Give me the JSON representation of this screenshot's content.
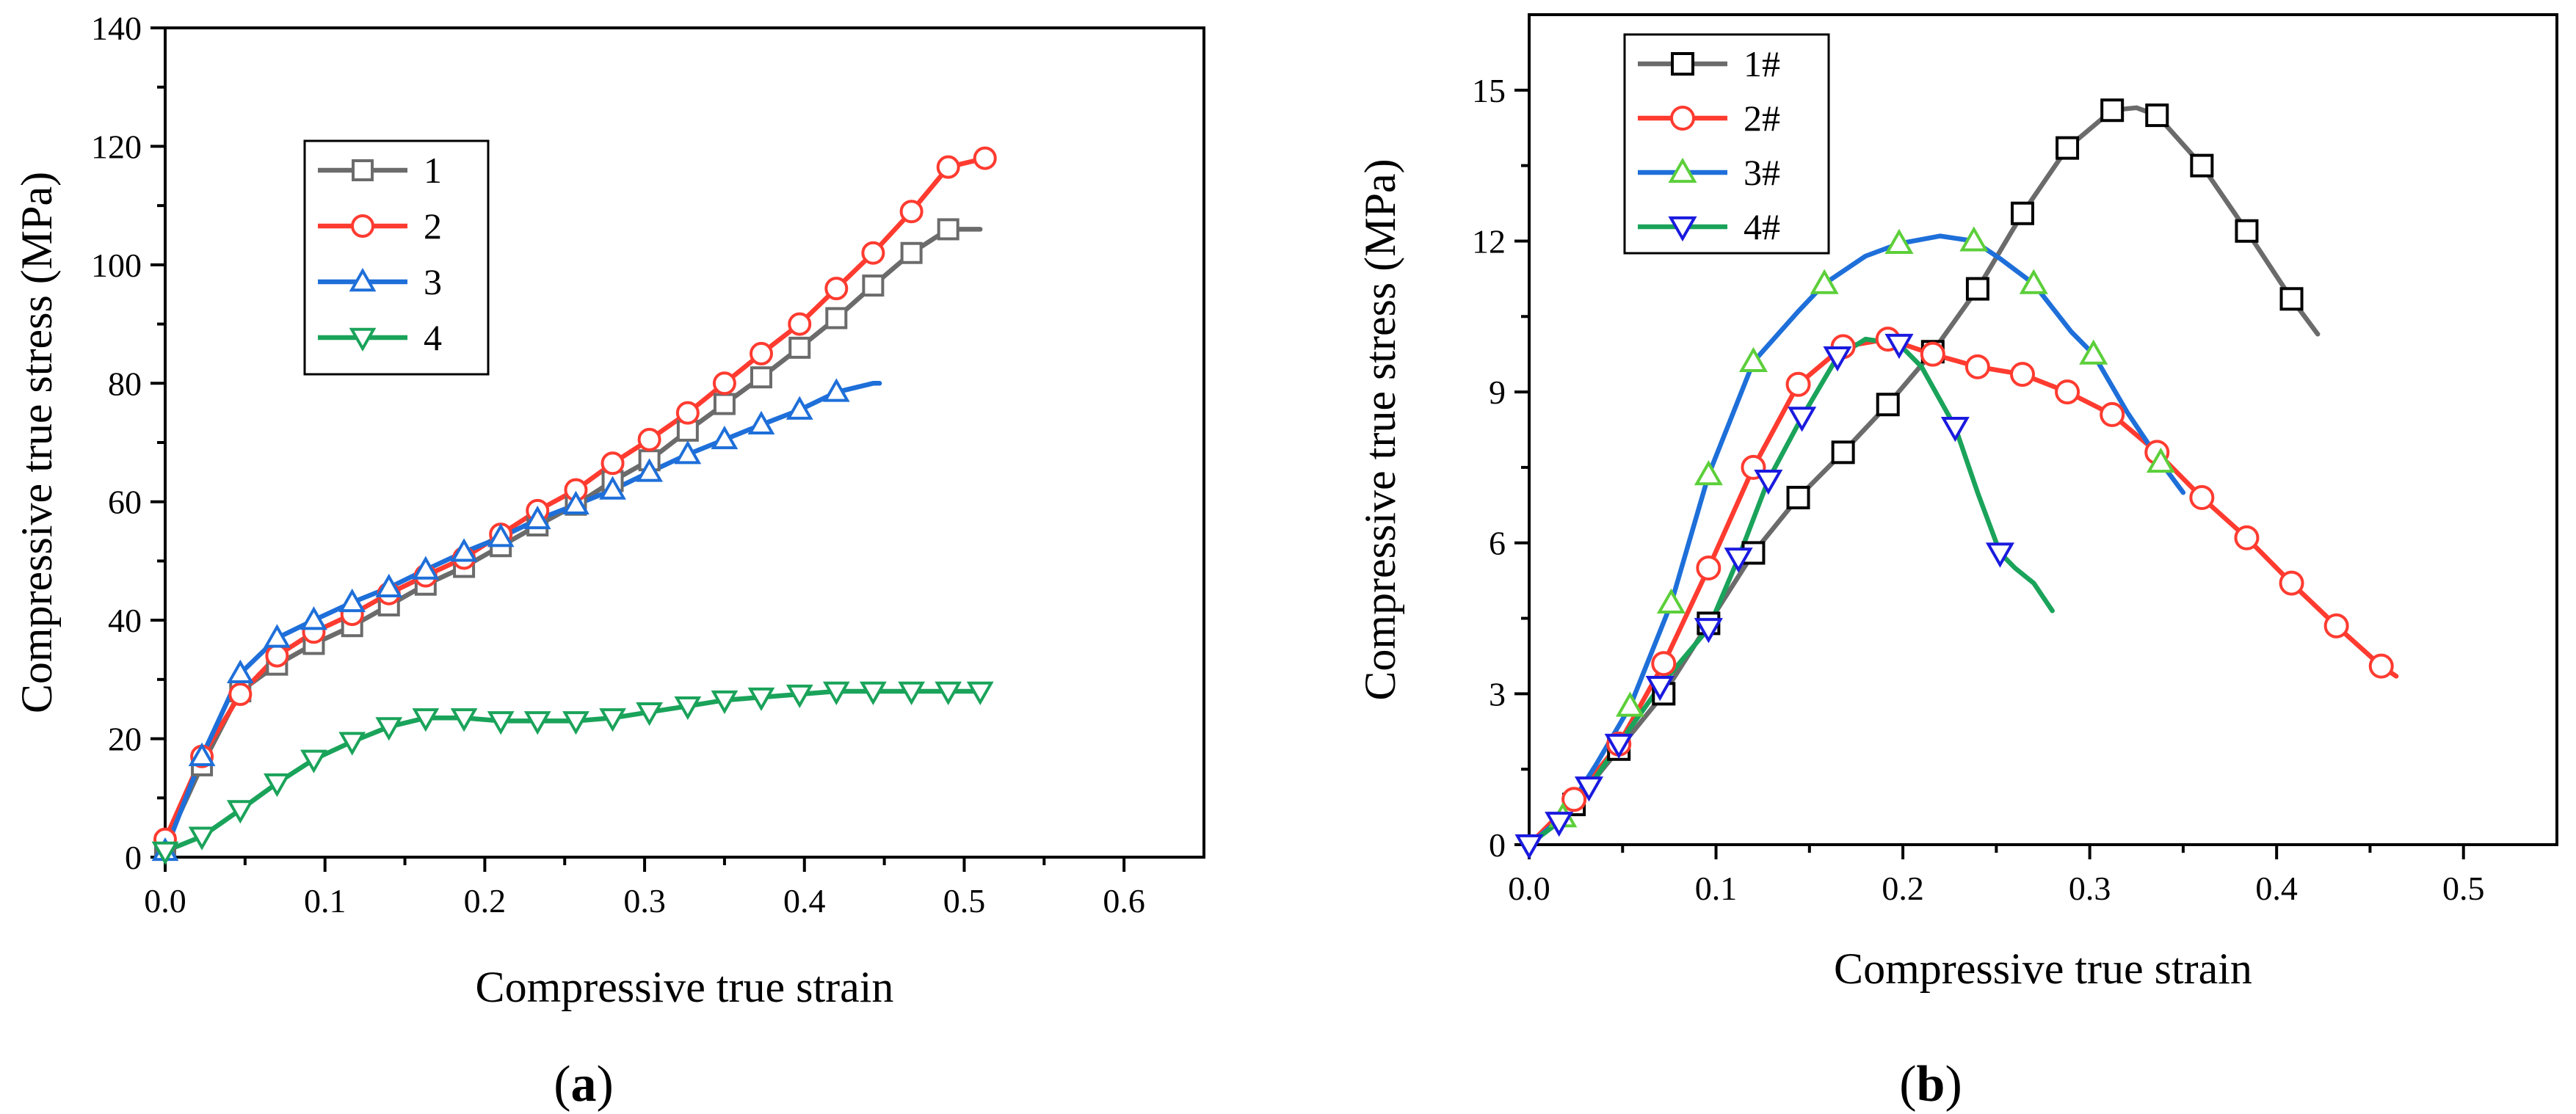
{
  "chart_data": [
    {
      "type": "line",
      "panel_label": "a",
      "xlabel": "Compressive true strain",
      "ylabel": "Compressive true stress (MPa)",
      "xlim": [
        0,
        0.65
      ],
      "ylim": [
        0,
        140
      ],
      "xticks": [
        0.0,
        0.1,
        0.2,
        0.3,
        0.4,
        0.5,
        0.6
      ],
      "yticks": [
        0,
        20,
        40,
        60,
        80,
        100,
        120,
        140
      ],
      "xtick_labels": [
        "0.0",
        "0.1",
        "0.2",
        "0.3",
        "0.4",
        "0.5",
        "0.6"
      ],
      "ytick_labels": [
        "0",
        "20",
        "40",
        "60",
        "80",
        "100",
        "120",
        "140"
      ],
      "legend_position": "upper-left",
      "grid": false,
      "series": [
        {
          "name": "1",
          "color": "#6b6b6b",
          "marker": "square",
          "x": [
            0,
            0.023,
            0.047,
            0.07,
            0.093,
            0.117,
            0.14,
            0.163,
            0.187,
            0.21,
            0.233,
            0.257,
            0.28,
            0.303,
            0.327,
            0.35,
            0.373,
            0.397,
            0.42,
            0.443,
            0.467,
            0.49,
            0.51
          ],
          "y": [
            2,
            15.5,
            28,
            32.5,
            36,
            39,
            42.5,
            46,
            49,
            52.5,
            56,
            59.5,
            63.5,
            67,
            72,
            76.5,
            81,
            86,
            91,
            96.5,
            102,
            106,
            106
          ],
          "marker_x": [
            0,
            0.023,
            0.047,
            0.07,
            0.093,
            0.117,
            0.14,
            0.163,
            0.187,
            0.21,
            0.233,
            0.257,
            0.28,
            0.303,
            0.327,
            0.35,
            0.373,
            0.397,
            0.42,
            0.443,
            0.467,
            0.49
          ]
        },
        {
          "name": "2",
          "color": "#ff3b30",
          "marker": "circle",
          "x": [
            0,
            0.023,
            0.047,
            0.07,
            0.093,
            0.117,
            0.14,
            0.163,
            0.187,
            0.21,
            0.233,
            0.257,
            0.28,
            0.303,
            0.327,
            0.35,
            0.373,
            0.397,
            0.42,
            0.443,
            0.467,
            0.49,
            0.513,
            0.517
          ],
          "y": [
            3,
            17,
            27.5,
            34,
            38,
            41,
            44.5,
            47.5,
            50.5,
            54.5,
            58.5,
            62,
            66.5,
            70.5,
            75,
            80,
            85,
            90,
            96,
            102,
            109,
            116.5,
            118,
            118.5
          ],
          "marker_x": [
            0,
            0.023,
            0.047,
            0.07,
            0.093,
            0.117,
            0.14,
            0.163,
            0.187,
            0.21,
            0.233,
            0.257,
            0.28,
            0.303,
            0.327,
            0.35,
            0.373,
            0.397,
            0.42,
            0.443,
            0.467,
            0.49,
            0.513
          ]
        },
        {
          "name": "3",
          "color": "#1e6fd9",
          "marker": "triangle-up",
          "x": [
            0,
            0.023,
            0.047,
            0.07,
            0.093,
            0.117,
            0.14,
            0.163,
            0.187,
            0.21,
            0.233,
            0.257,
            0.28,
            0.303,
            0.327,
            0.35,
            0.373,
            0.397,
            0.42,
            0.443,
            0.447
          ],
          "y": [
            1,
            17,
            31,
            37,
            40,
            43,
            45.5,
            48.5,
            51.5,
            54,
            57,
            59.5,
            62,
            65,
            68,
            70.5,
            73,
            75.5,
            78.5,
            80,
            80
          ],
          "marker_x": [
            0,
            0.023,
            0.047,
            0.07,
            0.093,
            0.117,
            0.14,
            0.163,
            0.187,
            0.21,
            0.233,
            0.257,
            0.28,
            0.303,
            0.327,
            0.35,
            0.373,
            0.397,
            0.42
          ]
        },
        {
          "name": "4",
          "color": "#1aa35a",
          "marker": "triangle-down",
          "x": [
            0,
            0.023,
            0.047,
            0.07,
            0.093,
            0.117,
            0.14,
            0.163,
            0.187,
            0.21,
            0.233,
            0.257,
            0.28,
            0.303,
            0.327,
            0.35,
            0.373,
            0.397,
            0.42,
            0.443,
            0.467,
            0.49,
            0.51
          ],
          "y": [
            1,
            3.5,
            8,
            12.5,
            16.5,
            19.5,
            22,
            23.5,
            23.5,
            23,
            23,
            23,
            23.5,
            24.5,
            25.5,
            26.5,
            27,
            27.5,
            28,
            28,
            28,
            28,
            28
          ],
          "marker_x": [
            0,
            0.023,
            0.047,
            0.07,
            0.093,
            0.117,
            0.14,
            0.163,
            0.187,
            0.21,
            0.233,
            0.257,
            0.28,
            0.303,
            0.327,
            0.35,
            0.373,
            0.397,
            0.42,
            0.443,
            0.467,
            0.49,
            0.51
          ]
        }
      ]
    },
    {
      "type": "line",
      "panel_label": "b",
      "xlabel": "Compressive true strain",
      "ylabel": "Compressive true stress (MPa)",
      "xlim": [
        0,
        0.55
      ],
      "ylim": [
        0,
        16.5
      ],
      "xticks": [
        0.0,
        0.1,
        0.2,
        0.3,
        0.4,
        0.5
      ],
      "yticks": [
        0,
        3,
        6,
        9,
        12,
        15
      ],
      "xtick_labels": [
        "0.0",
        "0.1",
        "0.2",
        "0.3",
        "0.4",
        "0.5"
      ],
      "ytick_labels": [
        "0",
        "3",
        "6",
        "9",
        "12",
        "15"
      ],
      "legend_position": "upper-left",
      "grid": false,
      "series": [
        {
          "name": "1#",
          "color": "#6b6b6b",
          "marker": "square",
          "x": [
            0,
            0.024,
            0.048,
            0.072,
            0.096,
            0.12,
            0.144,
            0.168,
            0.192,
            0.216,
            0.24,
            0.264,
            0.288,
            0.312,
            0.325,
            0.336,
            0.36,
            0.384,
            0.408,
            0.422
          ],
          "y": [
            0,
            0.8,
            1.9,
            3.0,
            4.4,
            5.8,
            6.9,
            7.8,
            8.75,
            9.8,
            11.05,
            12.55,
            13.85,
            14.6,
            14.65,
            14.5,
            13.5,
            12.2,
            10.85,
            10.15
          ],
          "marker_x": [
            0.024,
            0.048,
            0.072,
            0.096,
            0.12,
            0.144,
            0.168,
            0.192,
            0.216,
            0.24,
            0.264,
            0.288,
            0.312,
            0.336,
            0.36,
            0.384,
            0.408
          ]
        },
        {
          "name": "2#",
          "color": "#ff3b30",
          "marker": "circle",
          "x": [
            0,
            0.024,
            0.048,
            0.072,
            0.096,
            0.12,
            0.144,
            0.168,
            0.192,
            0.216,
            0.24,
            0.264,
            0.288,
            0.312,
            0.336,
            0.36,
            0.384,
            0.408,
            0.432,
            0.456,
            0.464
          ],
          "y": [
            0,
            0.9,
            2.0,
            3.6,
            5.5,
            7.5,
            9.15,
            9.9,
            10.05,
            9.75,
            9.5,
            9.35,
            9.0,
            8.55,
            7.8,
            6.9,
            6.1,
            5.2,
            4.35,
            3.55,
            3.35
          ],
          "marker_x": [
            0.024,
            0.048,
            0.072,
            0.096,
            0.12,
            0.144,
            0.168,
            0.192,
            0.216,
            0.24,
            0.264,
            0.288,
            0.312,
            0.336,
            0.36,
            0.384,
            0.408,
            0.432,
            0.456
          ]
        },
        {
          "name": "3#",
          "color": "#1e6fd9",
          "marker": "triangle-up",
          "x": [
            0,
            0.018,
            0.036,
            0.054,
            0.076,
            0.096,
            0.12,
            0.144,
            0.158,
            0.18,
            0.198,
            0.22,
            0.238,
            0.252,
            0.27,
            0.29,
            0.302,
            0.32,
            0.338,
            0.35
          ],
          "y": [
            0,
            0.55,
            1.6,
            2.75,
            4.8,
            7.35,
            9.6,
            10.6,
            11.15,
            11.7,
            11.95,
            12.1,
            12.0,
            11.65,
            11.15,
            10.2,
            9.75,
            8.6,
            7.6,
            7.0
          ],
          "marker_x": [
            0.018,
            0.054,
            0.076,
            0.096,
            0.12,
            0.158,
            0.198,
            0.238,
            0.27,
            0.302,
            0.338
          ]
        },
        {
          "name": "4#",
          "color": "#1aa35a",
          "marker": "triangle-down",
          "x": [
            0,
            0.016,
            0.032,
            0.048,
            0.07,
            0.096,
            0.112,
            0.128,
            0.146,
            0.165,
            0.18,
            0.198,
            0.21,
            0.228,
            0.24,
            0.252,
            0.26,
            0.27,
            0.28
          ],
          "y": [
            0,
            0.45,
            1.15,
            2.0,
            3.15,
            4.3,
            5.7,
            7.25,
            8.5,
            9.7,
            10.05,
            9.95,
            9.5,
            8.3,
            7.0,
            5.8,
            5.5,
            5.2,
            4.65
          ],
          "marker_x": [
            0,
            0.016,
            0.032,
            0.048,
            0.07,
            0.096,
            0.112,
            0.128,
            0.146,
            0.165,
            0.198,
            0.228,
            0.252
          ]
        }
      ]
    }
  ]
}
